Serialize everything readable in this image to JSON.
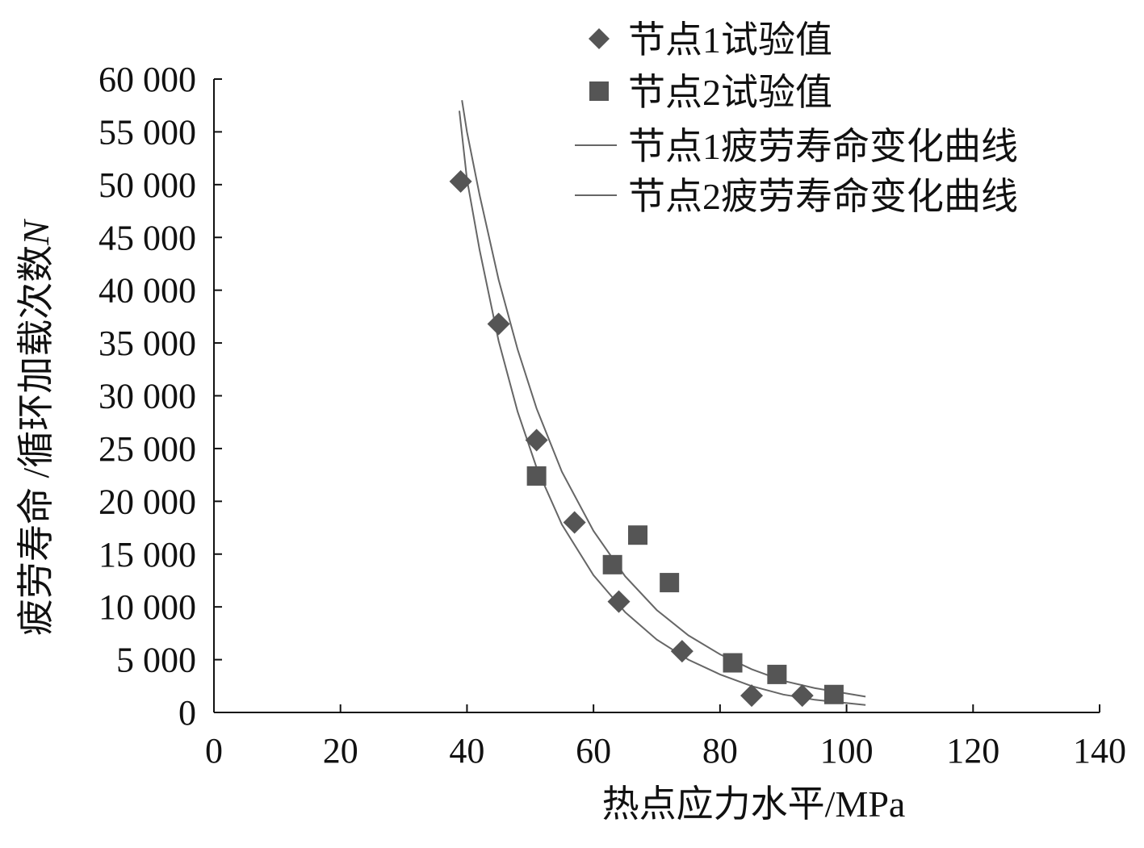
{
  "chart_data": {
    "type": "scatter",
    "title": "",
    "xlabel": "热点应力水平/MPa",
    "ylabel": "疲劳寿命 /循环加载次数",
    "ylabel_symbol": "N",
    "xlim": [
      0,
      140
    ],
    "ylim": [
      0,
      60000
    ],
    "x_ticks": [
      0,
      20,
      40,
      60,
      80,
      100,
      120,
      140
    ],
    "x_tick_labels": [
      "0",
      "20",
      "40",
      "60",
      "80",
      "100",
      "120",
      "140"
    ],
    "y_ticks": [
      0,
      5000,
      10000,
      15000,
      20000,
      25000,
      30000,
      35000,
      40000,
      45000,
      50000,
      55000,
      60000
    ],
    "y_tick_labels": [
      "0",
      "5 000",
      "10 000",
      "15 000",
      "20 000",
      "25 000",
      "30 000",
      "35 000",
      "40 000",
      "45 000",
      "50 000",
      "55 000",
      "60 000"
    ],
    "grid": false,
    "legend_position": "top-right",
    "series": [
      {
        "name": "节点1试验值",
        "kind": "points",
        "marker": "diamond",
        "color": "#555555",
        "points": [
          [
            39,
            50300
          ],
          [
            45,
            36800
          ],
          [
            51,
            25800
          ],
          [
            57,
            18000
          ],
          [
            64,
            10500
          ],
          [
            74,
            5800
          ],
          [
            85,
            1600
          ],
          [
            93,
            1600
          ]
        ]
      },
      {
        "name": "节点2试验值",
        "kind": "points",
        "marker": "square",
        "color": "#555555",
        "points": [
          [
            51,
            22400
          ],
          [
            63,
            14000
          ],
          [
            67,
            16800
          ],
          [
            72,
            12300
          ],
          [
            82,
            4700
          ],
          [
            89,
            3600
          ],
          [
            98,
            1700
          ]
        ]
      },
      {
        "name": "节点1疲劳寿命变化曲线",
        "kind": "curve",
        "color": "#666666",
        "points": [
          [
            38.8,
            57000
          ],
          [
            40,
            50500
          ],
          [
            42,
            43800
          ],
          [
            45,
            35200
          ],
          [
            48,
            28500
          ],
          [
            51,
            23200
          ],
          [
            55,
            17800
          ],
          [
            60,
            13000
          ],
          [
            65,
            9500
          ],
          [
            70,
            6900
          ],
          [
            75,
            5000
          ],
          [
            80,
            3600
          ],
          [
            85,
            2500
          ],
          [
            90,
            1700
          ],
          [
            95,
            1200
          ],
          [
            103,
            700
          ]
        ]
      },
      {
        "name": "节点2疲劳寿命变化曲线",
        "kind": "curve",
        "color": "#666666",
        "points": [
          [
            39.2,
            58000
          ],
          [
            40,
            55000
          ],
          [
            42,
            49000
          ],
          [
            45,
            41000
          ],
          [
            48,
            34400
          ],
          [
            51,
            28800
          ],
          [
            55,
            22800
          ],
          [
            60,
            17200
          ],
          [
            65,
            12900
          ],
          [
            70,
            9700
          ],
          [
            75,
            7300
          ],
          [
            80,
            5500
          ],
          [
            85,
            4100
          ],
          [
            90,
            3000
          ],
          [
            95,
            2300
          ],
          [
            103,
            1500
          ]
        ]
      }
    ]
  }
}
